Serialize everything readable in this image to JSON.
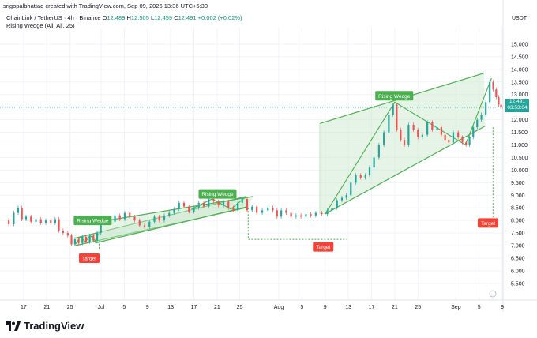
{
  "header": {
    "created_line": "srigopalbhattad created with TradingView.com, Sep 09, 2026 13:36 UTC+5:30",
    "symbol": "ChainLink / TetherUS · 4h · Binance",
    "ohlc": [
      {
        "label": "O",
        "value": "12.489"
      },
      {
        "label": "H",
        "value": "12.505"
      },
      {
        "label": "L",
        "value": "12.459"
      },
      {
        "label": "C",
        "value": "12.491"
      },
      {
        "label": "",
        "value": "+0.002 (+0.02%)"
      }
    ],
    "indicator": "Rising Wedge (All, All, 25)"
  },
  "price_box": {
    "price": "12.491",
    "countdown": "03:53:04",
    "color": "#26a69a"
  },
  "currency": "USDT",
  "brand": "TradingView",
  "colors": {
    "up": "#26a69a",
    "down": "#ef5350",
    "wedge": "#4caf50",
    "wedge_fill": "#c8e6c9",
    "label_bg": "#4caf50",
    "target_bg": "#f44336",
    "grid": "#f0f3fa",
    "text": "#131722"
  },
  "chart_data": {
    "type": "line",
    "title": "",
    "ylabel": "",
    "xlabel": "",
    "ylim": [
      4.9,
      15.5
    ],
    "xlim": [
      0,
      100
    ],
    "y_ticks": [
      "5.500",
      "6.000",
      "6.500",
      "7.000",
      "7.500",
      "8.000",
      "8.500",
      "9.000",
      "9.500",
      "10.000",
      "10.500",
      "11.000",
      "11.500",
      "12.000",
      "12.500",
      "13.000",
      "13.500",
      "14.000",
      "14.500",
      "15.000"
    ],
    "x_ticks": [
      {
        "label": "17",
        "x": 3.5
      },
      {
        "label": "21",
        "x": 8.2
      },
      {
        "label": "25",
        "x": 12.9
      },
      {
        "label": "Jul",
        "x": 19.2
      },
      {
        "label": "5",
        "x": 23.9
      },
      {
        "label": "9",
        "x": 28.6
      },
      {
        "label": "13",
        "x": 33.3
      },
      {
        "label": "17",
        "x": 38.0
      },
      {
        "label": "21",
        "x": 42.7
      },
      {
        "label": "25",
        "x": 47.3
      },
      {
        "label": "Aug",
        "x": 55.2
      },
      {
        "label": "5",
        "x": 59.9
      },
      {
        "label": "9",
        "x": 64.6
      },
      {
        "label": "13",
        "x": 69.3
      },
      {
        "label": "17",
        "x": 74.0
      },
      {
        "label": "21",
        "x": 78.7
      },
      {
        "label": "25",
        "x": 83.4
      },
      {
        "label": "Sep",
        "x": 91.1
      },
      {
        "label": "5",
        "x": 95.8
      },
      {
        "label": "9",
        "x": 100.5
      }
    ],
    "series": [
      {
        "values": [
          [
            0,
            8.0
          ],
          [
            1,
            7.85
          ],
          [
            2,
            8.3
          ],
          [
            2.8,
            8.5
          ],
          [
            3.5,
            8.05
          ],
          [
            4.5,
            8.15
          ],
          [
            5.5,
            7.95
          ],
          [
            6.5,
            8.05
          ],
          [
            7.5,
            7.9
          ],
          [
            8.5,
            8.0
          ],
          [
            9.5,
            7.9
          ],
          [
            10.3,
            8.05
          ],
          [
            11,
            7.6
          ],
          [
            12,
            7.5
          ],
          [
            12.9,
            7.4
          ],
          [
            13.5,
            7.05
          ],
          [
            14.3,
            7.25
          ],
          [
            15,
            7.1
          ],
          [
            15.8,
            7.35
          ],
          [
            16.5,
            7.15
          ],
          [
            17.3,
            7.4
          ],
          [
            18,
            7.2
          ],
          [
            18.8,
            7.5
          ],
          [
            19.5,
            7.9
          ],
          [
            20.5,
            8.1
          ],
          [
            21.5,
            7.95
          ],
          [
            22.5,
            8.2
          ],
          [
            23.5,
            8.05
          ],
          [
            24.5,
            8.3
          ],
          [
            25.5,
            8.15
          ],
          [
            26.5,
            8.0
          ],
          [
            27.5,
            7.8
          ],
          [
            28.5,
            7.75
          ],
          [
            29.5,
            7.95
          ],
          [
            30.5,
            8.15
          ],
          [
            31.5,
            8.0
          ],
          [
            32.5,
            8.2
          ],
          [
            33.5,
            8.3
          ],
          [
            34.5,
            8.45
          ],
          [
            35.5,
            8.7
          ],
          [
            36.5,
            8.55
          ],
          [
            37.5,
            8.35
          ],
          [
            38.5,
            8.5
          ],
          [
            39.5,
            8.7
          ],
          [
            40.5,
            8.55
          ],
          [
            41.5,
            8.85
          ],
          [
            42.5,
            8.75
          ],
          [
            43.5,
            8.6
          ],
          [
            44.5,
            8.75
          ],
          [
            45.5,
            8.5
          ],
          [
            46.5,
            8.4
          ],
          [
            47.3,
            8.7
          ],
          [
            48.3,
            8.85
          ],
          [
            49.3,
            8.4
          ],
          [
            50.3,
            8.55
          ],
          [
            51.2,
            8.3
          ],
          [
            52.5,
            8.4
          ],
          [
            53.5,
            8.5
          ],
          [
            54.5,
            8.4
          ],
          [
            55.2,
            8.15
          ],
          [
            56.2,
            8.4
          ],
          [
            57.2,
            8.3
          ],
          [
            58.2,
            8.15
          ],
          [
            59.2,
            8.2
          ],
          [
            60.2,
            8.15
          ],
          [
            61.2,
            8.25
          ],
          [
            62.2,
            8.2
          ],
          [
            63.2,
            8.3
          ],
          [
            64.6,
            8.25
          ],
          [
            65.5,
            8.4
          ],
          [
            66.5,
            8.5
          ],
          [
            67.5,
            8.8
          ],
          [
            68.5,
            8.9
          ],
          [
            69.3,
            9.0
          ],
          [
            70.3,
            9.5
          ],
          [
            71.3,
            9.8
          ],
          [
            72.3,
            9.7
          ],
          [
            73.2,
            9.8
          ],
          [
            74,
            10.1
          ],
          [
            75,
            10.5
          ],
          [
            76,
            11.0
          ],
          [
            77,
            11.5
          ],
          [
            78,
            12.2
          ],
          [
            78.7,
            12.6
          ],
          [
            79.5,
            11.6
          ],
          [
            80.3,
            11.2
          ],
          [
            81,
            11.0
          ],
          [
            82,
            11.8
          ],
          [
            83,
            11.6
          ],
          [
            83.8,
            11.3
          ],
          [
            84.8,
            11.4
          ],
          [
            85.8,
            11.9
          ],
          [
            86.8,
            11.6
          ],
          [
            87.8,
            11.7
          ],
          [
            88.5,
            11.4
          ],
          [
            89.3,
            11.2
          ],
          [
            90,
            11.1
          ],
          [
            91.1,
            11.5
          ],
          [
            92,
            11.3
          ],
          [
            92.8,
            11.1
          ],
          [
            93.5,
            11.0
          ],
          [
            94.2,
            11.3
          ],
          [
            95,
            11.7
          ],
          [
            95.8,
            12.0
          ],
          [
            96.7,
            12.2
          ],
          [
            97.6,
            12.7
          ],
          [
            98.3,
            13.5
          ],
          [
            99,
            13.2
          ],
          [
            99.5,
            12.9
          ],
          [
            100,
            12.6
          ],
          [
            100.5,
            12.5
          ]
        ]
      }
    ],
    "annotations": [
      {
        "text": "Rising Wedge",
        "kind": "pattern",
        "x": 17.5,
        "y": 8.0
      },
      {
        "text": "Target",
        "kind": "target",
        "x": 16.8,
        "y": 6.5
      },
      {
        "text": "Rising Wedge",
        "kind": "pattern",
        "x": 42.8,
        "y": 9.05
      },
      {
        "text": "Target",
        "kind": "target",
        "x": 64.2,
        "y": 6.95
      },
      {
        "text": "Rising Wedge",
        "kind": "pattern",
        "x": 78.6,
        "y": 12.95
      },
      {
        "text": "Target",
        "kind": "target",
        "x": 97.6,
        "y": 7.9
      }
    ],
    "wedges": [
      {
        "upper": [
          [
            14.0,
            7.3
          ],
          [
            48.5,
            8.95
          ]
        ],
        "lower": [
          [
            14.0,
            7.0
          ],
          [
            48.5,
            8.5
          ]
        ],
        "swing": [
          [
            14.0,
            7.05
          ],
          [
            15.0,
            7.35
          ],
          [
            16.0,
            7.15
          ],
          [
            17.0,
            7.4
          ],
          [
            18.0,
            7.2
          ],
          [
            18.8,
            7.5
          ]
        ],
        "target_path": [
          [
            18.8,
            7.2
          ],
          [
            18.8,
            6.85
          ]
        ]
      },
      {
        "upper": [
          [
            19.0,
            7.95
          ],
          [
            50.0,
            8.95
          ]
        ],
        "lower": [
          [
            18.0,
            7.1
          ],
          [
            49.0,
            8.55
          ]
        ],
        "swing": [
          [
            37.5,
            8.45
          ],
          [
            41.7,
            8.85
          ],
          [
            45.5,
            8.45
          ],
          [
            48.6,
            8.95
          ]
        ],
        "target_path": [
          [
            49.0,
            8.5
          ],
          [
            49.0,
            7.25
          ],
          [
            69.0,
            7.25
          ]
        ]
      },
      {
        "upper": [
          [
            63.5,
            11.85
          ],
          [
            96.8,
            13.85
          ]
        ],
        "lower": [
          [
            64.5,
            8.25
          ],
          [
            97.0,
            11.75
          ]
        ],
        "fill_box": [
          63.5,
          8.25
        ],
        "swing": [
          [
            64.6,
            8.25
          ],
          [
            78.7,
            12.7
          ],
          [
            93.0,
            11.0
          ],
          [
            98.3,
            13.65
          ]
        ],
        "target_path": [
          [
            98.6,
            11.7
          ],
          [
            98.6,
            8.05
          ],
          [
            99.8,
            8.05
          ]
        ]
      }
    ],
    "last_price": 12.491,
    "grid": true
  }
}
